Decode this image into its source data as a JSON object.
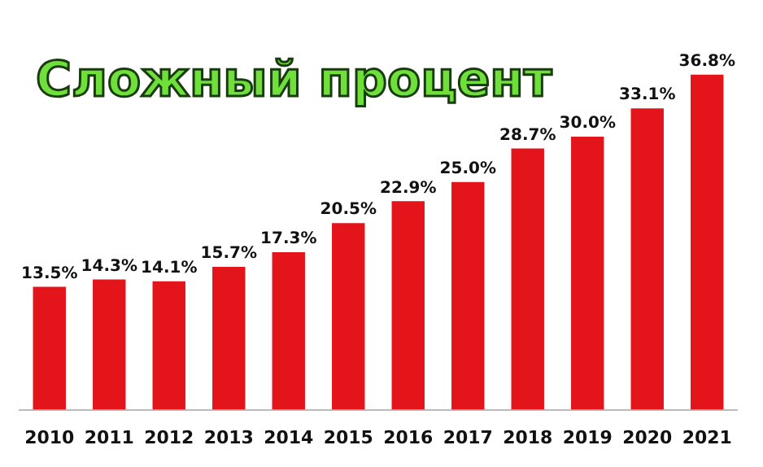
{
  "chart_data": {
    "type": "bar",
    "title": "Сложный процент",
    "categories": [
      "2010",
      "2011",
      "2012",
      "2013",
      "2014",
      "2015",
      "2016",
      "2017",
      "2018",
      "2019",
      "2020",
      "2021"
    ],
    "values": [
      13.5,
      14.3,
      14.1,
      15.7,
      17.3,
      20.5,
      22.9,
      25.0,
      28.7,
      30.0,
      33.1,
      36.8
    ],
    "value_labels": [
      "13.5%",
      "14.3%",
      "14.1%",
      "15.7%",
      "17.3%",
      "20.5%",
      "22.9%",
      "25.0%",
      "28.7%",
      "30.0%",
      "33.1%",
      "36.8%"
    ],
    "color": "#e3151b",
    "tick_labels": "x",
    "grid": false,
    "legend": false
  }
}
